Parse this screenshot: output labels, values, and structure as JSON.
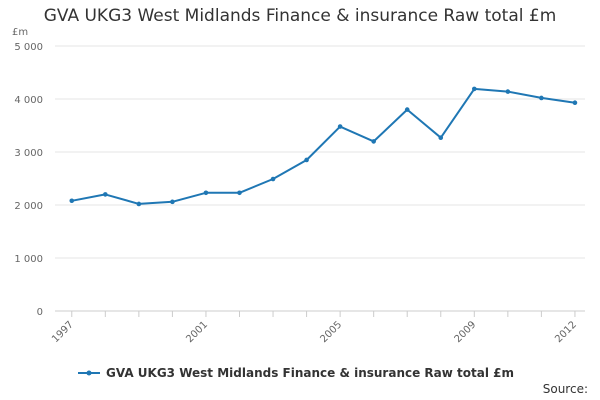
{
  "chart_data": {
    "type": "line",
    "title": "GVA UKG3 West Midlands Finance & insurance Raw total £m",
    "unit_label": "£m",
    "x": [
      1997,
      1998,
      1999,
      2000,
      2001,
      2002,
      2003,
      2004,
      2005,
      2006,
      2007,
      2008,
      2009,
      2010,
      2011,
      2012
    ],
    "x_tick_labels": [
      "1997",
      "2001",
      "2005",
      "2009",
      "2012"
    ],
    "x_tick_values": [
      1997,
      2001,
      2005,
      2009,
      2012
    ],
    "y_ticks": [
      0,
      1000,
      2000,
      3000,
      4000,
      5000
    ],
    "y_tick_labels": [
      "0",
      "1 000",
      "2 000",
      "3 000",
      "4 000",
      "5 000"
    ],
    "ylim": [
      0,
      5000
    ],
    "grid": true,
    "legend_position": "bottom-left",
    "series": [
      {
        "name": "GVA UKG3 West Midlands Finance & insurance Raw total £m",
        "color": "#1f77b4",
        "values": [
          2080,
          2200,
          2020,
          2060,
          2230,
          2230,
          2490,
          2850,
          3480,
          3200,
          3800,
          3270,
          4190,
          4140,
          4020,
          3930
        ]
      }
    ]
  },
  "source_label": "Source:"
}
